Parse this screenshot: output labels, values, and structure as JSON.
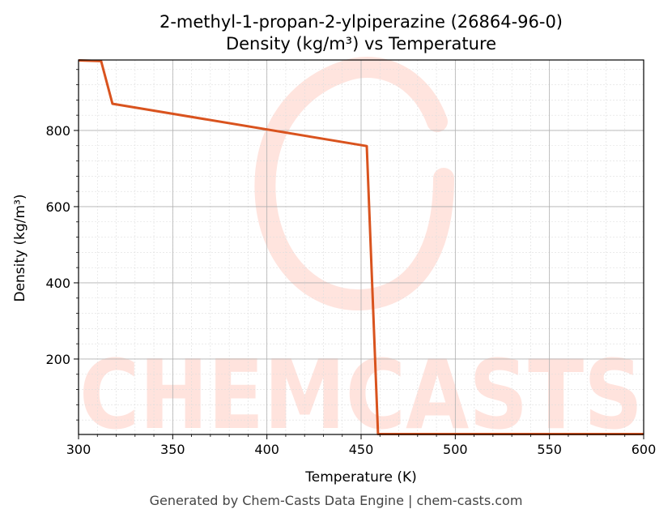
{
  "chart_data": {
    "type": "line",
    "title": "2-methyl-1-propan-2-ylpiperazine (26864-96-0)",
    "subtitle": "Density (kg/m³) vs Temperature",
    "xlabel": "Temperature (K)",
    "ylabel": "Density (kg/m³)",
    "xlim": [
      300,
      600
    ],
    "ylim": [
      2,
      985
    ],
    "x_ticks": [
      300,
      350,
      400,
      450,
      500,
      550,
      600
    ],
    "y_ticks": [
      200,
      400,
      600,
      800
    ],
    "grid": true,
    "series": [
      {
        "color": "#d9531e",
        "x": [
          300,
          312,
          318,
          453,
          459,
          600
        ],
        "y": [
          984,
          982,
          870,
          759,
          3,
          3
        ]
      }
    ],
    "watermark": "CHEMCASTS"
  },
  "footer": "Generated by Chem-Casts Data Engine | chem-casts.com"
}
